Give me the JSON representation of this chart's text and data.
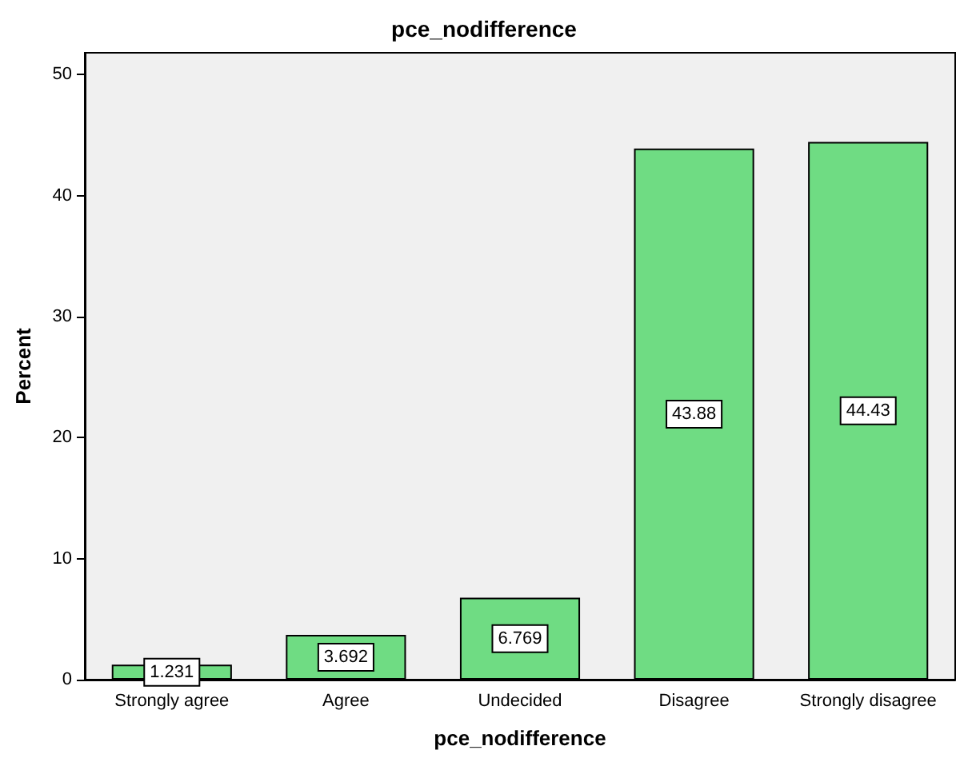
{
  "chart_data": {
    "type": "bar",
    "title": "pce_nodifference",
    "xlabel": "pce_nodifference",
    "ylabel": "Percent",
    "categories": [
      "Strongly agree",
      "Agree",
      "Undecided",
      "Disagree",
      "Strongly disagree"
    ],
    "values": [
      1.231,
      3.692,
      6.769,
      43.88,
      44.43
    ],
    "color": "#6fdc83",
    "ylim": [
      0,
      51.8
    ],
    "yticks": [
      0,
      10,
      20,
      30,
      40,
      50
    ],
    "grid": false,
    "data_labels": true
  }
}
